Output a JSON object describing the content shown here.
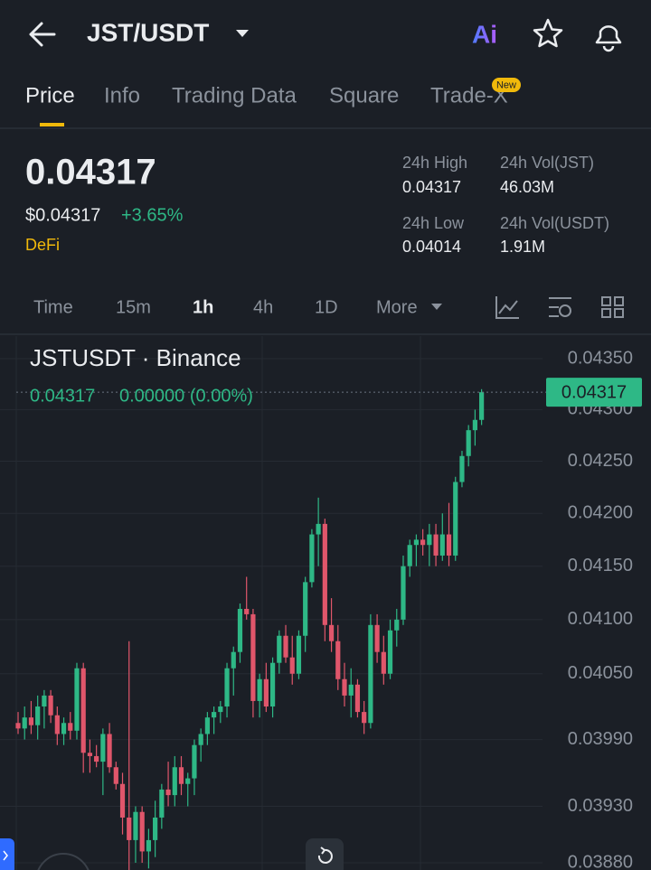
{
  "header": {
    "symbol": "JST/USDT",
    "ai": "Ai"
  },
  "tabs": [
    "Price",
    "Info",
    "Trading Data",
    "Square",
    "Trade-X"
  ],
  "new_badge": "New",
  "ticker": {
    "price": "0.04317",
    "usd_price": "$0.04317",
    "change": "+3.65%",
    "tag": "DeFi",
    "stats": [
      {
        "label": "24h High",
        "value": "0.04317"
      },
      {
        "label": "24h Vol(JST)",
        "value": "46.03M"
      },
      {
        "label": "24h Low",
        "value": "0.04014"
      },
      {
        "label": "24h Vol(USDT)",
        "value": "1.91M"
      }
    ]
  },
  "intervals": [
    "Time",
    "15m",
    "1h",
    "4h",
    "1D",
    "More"
  ],
  "chart_data": {
    "type": "candlestick",
    "title": "JSTUSDT · Binance",
    "legend_price": "0.04317",
    "legend_change": "0.00000 (0.00%)",
    "log_scale": true,
    "grid": true,
    "up_color": "#2eb886",
    "down_color": "#e0566b",
    "last_price": 0.04317,
    "ylim": [
      0.0388,
      0.0435
    ],
    "yticks": [
      {
        "value": 0.0435,
        "label": "0.04350"
      },
      {
        "value": 0.043,
        "label": "0.04300"
      },
      {
        "value": 0.0425,
        "label": "0.04250"
      },
      {
        "value": 0.042,
        "label": "0.04200"
      },
      {
        "value": 0.0415,
        "label": "0.04150"
      },
      {
        "value": 0.041,
        "label": "0.04100"
      },
      {
        "value": 0.0405,
        "label": "0.04050"
      },
      {
        "value": 0.0399,
        "label": "0.03990"
      },
      {
        "value": 0.0393,
        "label": "0.03930"
      },
      {
        "value": 0.0388,
        "label": "0.03880"
      }
    ],
    "open": [
      0.04005,
      0.04,
      0.0401,
      0.04003,
      0.0402,
      0.0403,
      0.04012,
      0.03995,
      0.04005,
      0.03998,
      0.04055,
      0.03978,
      0.03975,
      0.0397,
      0.03995,
      0.03965,
      0.0395,
      0.0392,
      0.039,
      0.03925,
      0.0389,
      0.039,
      0.0392,
      0.03945,
      0.0394,
      0.03965,
      0.0395,
      0.03955,
      0.03985,
      0.03995,
      0.0401,
      0.04015,
      0.0402,
      0.04055,
      0.0407,
      0.0411,
      0.04105,
      0.04025,
      0.04045,
      0.0402,
      0.0406,
      0.04085,
      0.04065,
      0.0405,
      0.04085,
      0.04135,
      0.0418,
      0.0419,
      0.04095,
      0.0408,
      0.04045,
      0.0403,
      0.0404,
      0.04015,
      0.04005,
      0.04095,
      0.0407,
      0.0405,
      0.0409,
      0.041,
      0.0415,
      0.0417,
      0.04175,
      0.0417,
      0.0418,
      0.0416,
      0.0418,
      0.0416,
      0.0423,
      0.04255,
      0.0428,
      0.0429
    ],
    "high": [
      0.04015,
      0.0402,
      0.04025,
      0.0403,
      0.04035,
      0.04035,
      0.0402,
      0.0401,
      0.04015,
      0.0406,
      0.0406,
      0.0399,
      0.03985,
      0.04,
      0.04005,
      0.0397,
      0.0396,
      0.0408,
      0.0393,
      0.0393,
      0.0391,
      0.03935,
      0.0395,
      0.0397,
      0.03975,
      0.03975,
      0.0396,
      0.0399,
      0.04,
      0.04015,
      0.0402,
      0.04025,
      0.0406,
      0.04075,
      0.04115,
      0.0414,
      0.0411,
      0.0405,
      0.0406,
      0.04065,
      0.0409,
      0.04095,
      0.04085,
      0.0409,
      0.0414,
      0.04185,
      0.04215,
      0.04195,
      0.0412,
      0.04095,
      0.0406,
      0.04055,
      0.04045,
      0.04025,
      0.04105,
      0.04105,
      0.04085,
      0.041,
      0.0411,
      0.0416,
      0.04175,
      0.0418,
      0.04185,
      0.0419,
      0.0419,
      0.042,
      0.0421,
      0.04235,
      0.0426,
      0.04285,
      0.043,
      0.0432
    ],
    "low": [
      0.03995,
      0.0399,
      0.03995,
      0.0399,
      0.04,
      0.04005,
      0.03985,
      0.03985,
      0.0399,
      0.0399,
      0.0396,
      0.0396,
      0.03965,
      0.0394,
      0.0396,
      0.03945,
      0.03905,
      0.0387,
      0.0388,
      0.0388,
      0.03875,
      0.03885,
      0.0391,
      0.0393,
      0.0393,
      0.0394,
      0.0393,
      0.0394,
      0.0397,
      0.03985,
      0.03995,
      0.04005,
      0.0401,
      0.0403,
      0.0406,
      0.041,
      0.0401,
      0.0401,
      0.04015,
      0.0401,
      0.0405,
      0.0406,
      0.0404,
      0.04045,
      0.0407,
      0.0413,
      0.0415,
      0.0408,
      0.0407,
      0.04035,
      0.0402,
      0.0401,
      0.0401,
      0.03995,
      0.04,
      0.0406,
      0.0404,
      0.04045,
      0.04075,
      0.04095,
      0.0414,
      0.0415,
      0.0416,
      0.0415,
      0.0415,
      0.04155,
      0.0415,
      0.04155,
      0.04225,
      0.04245,
      0.04265,
      0.04285
    ],
    "close": [
      0.04,
      0.0401,
      0.04003,
      0.0402,
      0.0403,
      0.04012,
      0.03995,
      0.04005,
      0.03998,
      0.04055,
      0.03978,
      0.03975,
      0.0397,
      0.03995,
      0.03965,
      0.0395,
      0.0392,
      0.039,
      0.03925,
      0.0389,
      0.039,
      0.0392,
      0.03945,
      0.0394,
      0.03965,
      0.0395,
      0.03955,
      0.03985,
      0.03995,
      0.0401,
      0.04015,
      0.0402,
      0.04055,
      0.0407,
      0.0411,
      0.04105,
      0.04025,
      0.04045,
      0.0402,
      0.0406,
      0.04085,
      0.04065,
      0.0405,
      0.04085,
      0.04135,
      0.0418,
      0.0419,
      0.04095,
      0.0408,
      0.04045,
      0.0403,
      0.0404,
      0.04015,
      0.04005,
      0.04095,
      0.0407,
      0.0405,
      0.0409,
      0.041,
      0.0415,
      0.0417,
      0.04175,
      0.0417,
      0.0418,
      0.0416,
      0.0418,
      0.0416,
      0.0423,
      0.04255,
      0.0428,
      0.0429,
      0.04317
    ]
  }
}
